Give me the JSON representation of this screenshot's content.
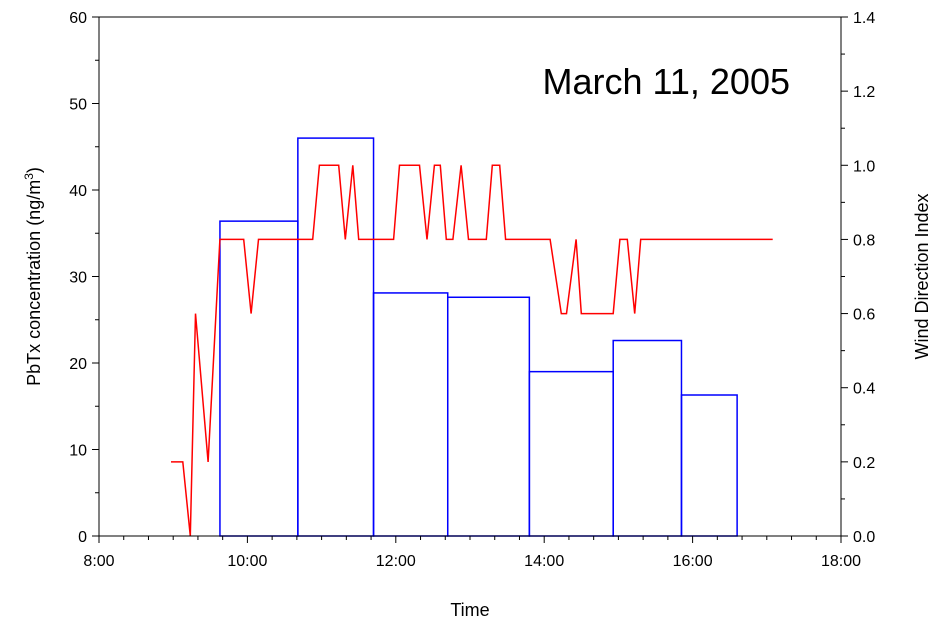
{
  "chart_data": {
    "type": "bar",
    "annotation": "March 11, 2005",
    "xlabel": "Time",
    "ylabel_left_main": "PbTx concentration (ng/m",
    "ylabel_left_sup": "3",
    "ylabel_left_end": ")",
    "ylabel_right": "Wind Direction Index",
    "xlim": [
      8,
      18
    ],
    "ylim_left": [
      0,
      60
    ],
    "ylim_right": [
      0,
      1.4
    ],
    "x_ticks": [
      8,
      10,
      12,
      14,
      16,
      18
    ],
    "x_tick_labels": [
      "8:00",
      "10:00",
      "12:00",
      "14:00",
      "16:00",
      "18:00"
    ],
    "y_left_ticks": [
      0,
      10,
      20,
      30,
      40,
      50,
      60
    ],
    "y_left_tick_labels": [
      "0",
      "10",
      "20",
      "30",
      "40",
      "50",
      "60"
    ],
    "y_right_ticks": [
      0,
      0.2,
      0.4,
      0.6,
      0.8,
      1.0,
      1.2,
      1.4
    ],
    "y_right_tick_labels": [
      "0.0",
      "0.2",
      "0.4",
      "0.6",
      "0.8",
      "1.0",
      "1.2",
      "1.4"
    ],
    "grid": false,
    "series": [
      {
        "type": "step-bars",
        "axis": "left",
        "color": "#0000ff",
        "bars": [
          {
            "start": 9.63,
            "end": 10.68,
            "value": 36.4
          },
          {
            "start": 10.68,
            "end": 11.7,
            "value": 46.0
          },
          {
            "start": 11.7,
            "end": 12.7,
            "value": 28.1
          },
          {
            "start": 12.7,
            "end": 13.8,
            "value": 27.6
          },
          {
            "start": 13.8,
            "end": 14.93,
            "value": 19.0
          },
          {
            "start": 14.93,
            "end": 15.85,
            "value": 22.6
          },
          {
            "start": 15.85,
            "end": 16.6,
            "value": 16.3
          }
        ]
      },
      {
        "type": "line",
        "axis": "right",
        "color": "#ff0000",
        "x": [
          8.97,
          9.13,
          9.23,
          9.3,
          9.47,
          9.63,
          9.95,
          10.05,
          10.15,
          10.88,
          10.97,
          11.23,
          11.32,
          11.42,
          11.5,
          11.97,
          12.05,
          12.32,
          12.42,
          12.52,
          12.6,
          12.68,
          12.77,
          12.88,
          12.98,
          13.22,
          13.3,
          13.4,
          13.48,
          13.85,
          14.08,
          14.23,
          14.3,
          14.43,
          14.5,
          14.93,
          15.02,
          15.12,
          15.22,
          15.3,
          17.08
        ],
        "y": [
          0.2,
          0.2,
          0.0,
          0.6,
          0.2,
          0.8,
          0.8,
          0.6,
          0.8,
          0.8,
          1.0,
          1.0,
          0.8,
          1.0,
          0.8,
          0.8,
          1.0,
          1.0,
          0.8,
          1.0,
          1.0,
          0.8,
          0.8,
          1.0,
          0.8,
          0.8,
          1.0,
          1.0,
          0.8,
          0.8,
          0.8,
          0.6,
          0.6,
          0.8,
          0.6,
          0.6,
          0.8,
          0.8,
          0.6,
          0.8,
          0.8
        ]
      }
    ]
  }
}
